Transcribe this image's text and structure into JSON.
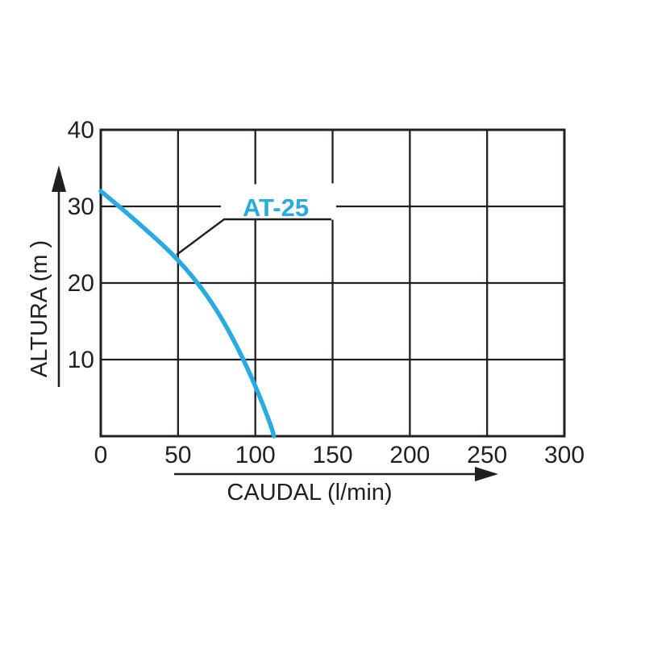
{
  "chart_data": {
    "type": "line",
    "title": "",
    "xlabel": "CAUDAL (l/min)",
    "ylabel": "ALTURA (m )",
    "xlim": [
      0,
      300
    ],
    "ylim": [
      0,
      40
    ],
    "x_ticks": [
      "0",
      "50",
      "100",
      "150",
      "200",
      "250",
      "300"
    ],
    "y_ticks": [
      "40",
      "30",
      "20",
      "10"
    ],
    "grid": true,
    "legend_position": "inline-callout",
    "series": [
      {
        "name": "AT-25",
        "color": "#29abe2",
        "points": [
          [
            0,
            32
          ],
          [
            10,
            30.3
          ],
          [
            20,
            28.6
          ],
          [
            30,
            26.8
          ],
          [
            40,
            25
          ],
          [
            50,
            23
          ],
          [
            60,
            20.7
          ],
          [
            70,
            18
          ],
          [
            80,
            14.8
          ],
          [
            90,
            11
          ],
          [
            100,
            6.6
          ],
          [
            110,
            1.5
          ],
          [
            112,
            0
          ]
        ]
      }
    ],
    "annotation": {
      "label": "AT-25",
      "points_to_x": 50,
      "points_to_y": 23
    }
  },
  "colors": {
    "curve": "#29abe2",
    "axis": "#231f20",
    "background": "#ffffff"
  }
}
